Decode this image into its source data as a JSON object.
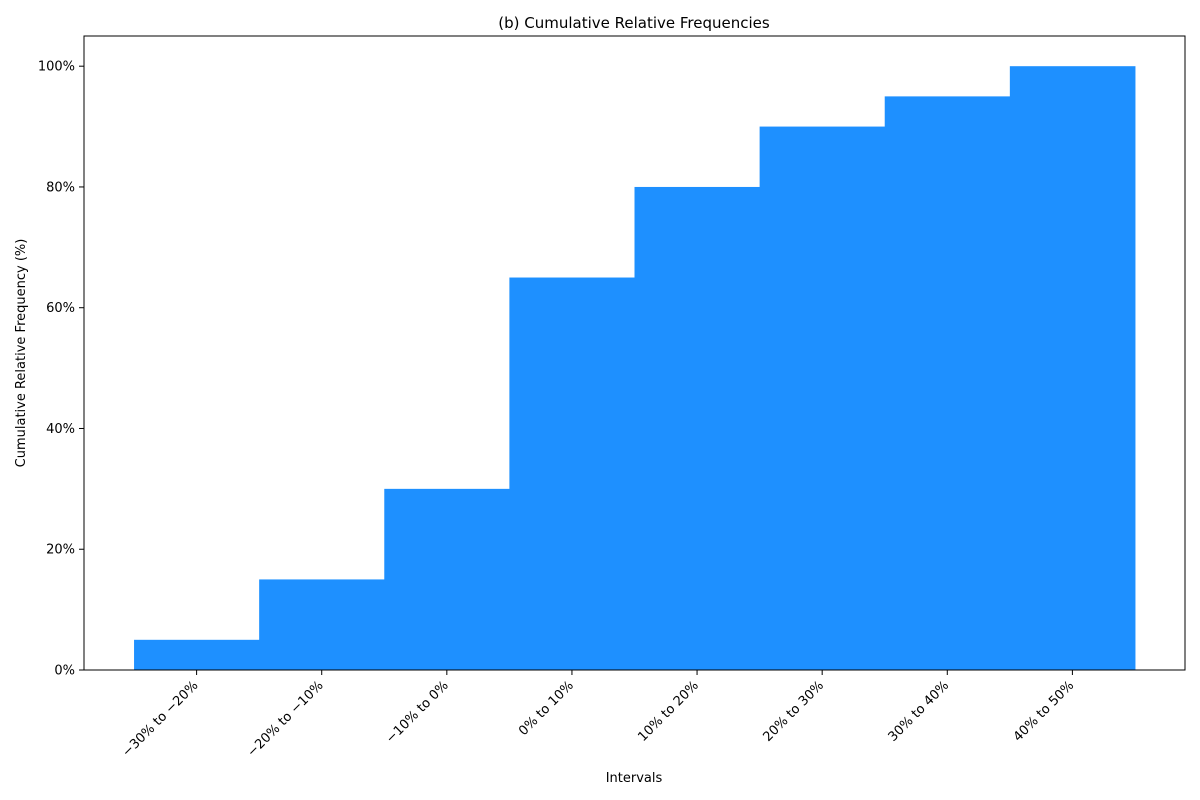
{
  "chart_data": {
    "type": "bar",
    "title": "(b) Cumulative Relative Frequencies",
    "xlabel": "Intervals",
    "ylabel": "Cumulative Relative Frequency (%)",
    "categories": [
      "−30% to −20%",
      "−20% to −10%",
      "−10% to 0%",
      "0% to 10%",
      "10% to 20%",
      "20% to 30%",
      "30% to 40%",
      "40% to 50%"
    ],
    "values": [
      5,
      15,
      30,
      65,
      80,
      90,
      95,
      100
    ],
    "ylim": [
      0,
      105
    ],
    "yticks": [
      0,
      20,
      40,
      60,
      80,
      100
    ],
    "ytick_labels": [
      "0%",
      "20%",
      "40%",
      "60%",
      "80%",
      "100%"
    ],
    "bar_color": "#1e90ff",
    "grid": false,
    "legend": "none"
  }
}
